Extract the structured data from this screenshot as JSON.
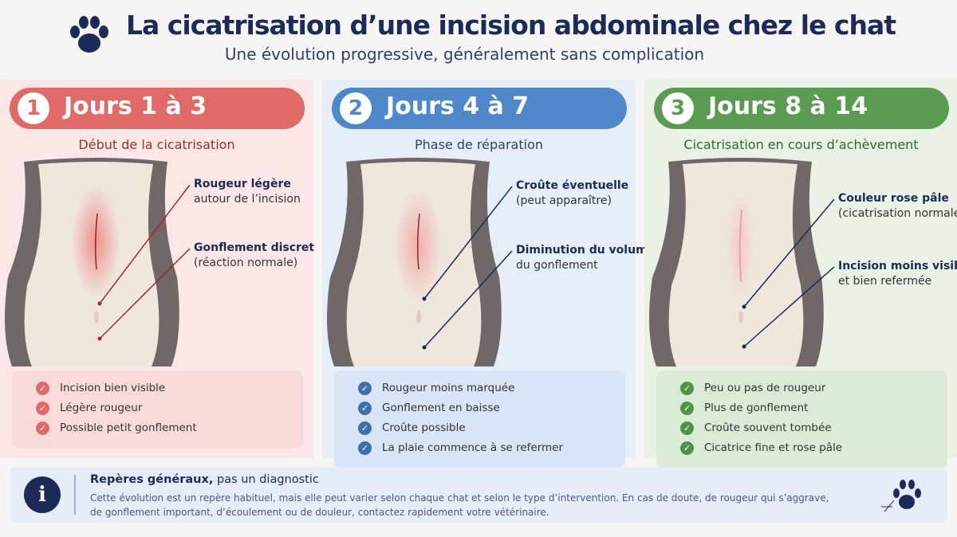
{
  "header": {
    "title": "La cicatrisation d’une incision abdominale chez le chat",
    "subtitle": "Une évolution progressive, généralement sans complication"
  },
  "stages": [
    {
      "number": "1",
      "title": "Jours 1 à 3",
      "subtitle": "Début de la cicatrisation",
      "annotations": [
        {
          "bold": "Rougeur légère",
          "text": "autour de l’incision"
        },
        {
          "bold": "Gonflement discret",
          "text": "(réaction normale)"
        }
      ],
      "items": [
        "Incision bien visible",
        "Légère rougeur",
        "Possible petit gonflement"
      ]
    },
    {
      "number": "2",
      "title": "Jours 4 à 7",
      "subtitle": "Phase de réparation",
      "annotations": [
        {
          "bold": "Croûte éventuelle",
          "text": "(peut apparaître)"
        },
        {
          "bold": "Diminution du volume",
          "text": "du gonflement"
        }
      ],
      "items": [
        "Rougeur moins marquée",
        "Gonflement en baisse",
        "Croûte possible",
        "La plaie commence à se refermer"
      ]
    },
    {
      "number": "3",
      "title": "Jours 8 à 14",
      "subtitle": "Cicatrisation en cours d’achèvement",
      "annotations": [
        {
          "bold": "Couleur rose pâle",
          "text": "(cicatrisation normale)"
        },
        {
          "bold": "Incision moins visible",
          "text": "et bien refermée"
        }
      ],
      "items": [
        "Peu ou pas de rougeur",
        "Plus de gonflement",
        "Croûte souvent tombée",
        "Cicatrice fine et rose pâle"
      ]
    }
  ],
  "footer": {
    "title_bold": "Repères généraux,",
    "title_rest": "pas un diagnostic",
    "icon": "i",
    "lines": [
      "Cette évolution est un repère habituel, mais elle peut varier selon chaque chat et selon le type d’intervention. En cas de doute, de rougeur qui s’aggrave,",
      "de gonflement important, d’écoulement ou de douleur, contactez rapidement votre vétérinaire."
    ]
  }
}
